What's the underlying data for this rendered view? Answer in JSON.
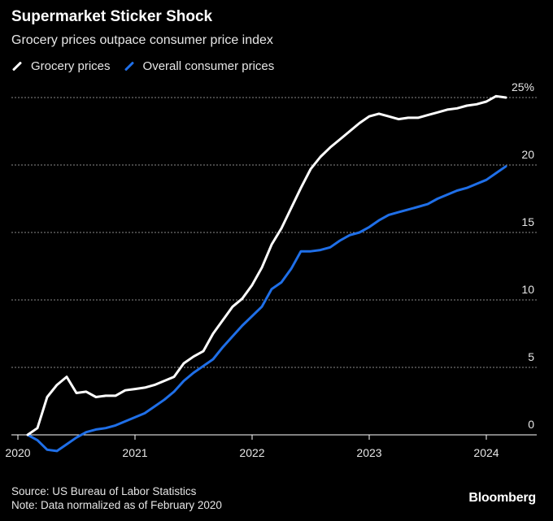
{
  "chart_data": {
    "type": "line",
    "title": "Supermarket Sticker Shock",
    "subtitle": "Grocery prices outpace consumer price index",
    "ylabel": "",
    "xlabel": "",
    "y_unit": "%",
    "ylim": [
      0,
      25
    ],
    "yticks": [
      0,
      5,
      10,
      15,
      20,
      25
    ],
    "ytick_labels": [
      "0",
      "5",
      "10",
      "15",
      "20",
      "25%"
    ],
    "xticks": [
      2020,
      2021,
      2022,
      2023,
      2024
    ],
    "grid": true,
    "legend_position": "top-left",
    "series": [
      {
        "name": "Grocery prices",
        "color": "#ffffff",
        "x": [
          "2020-02",
          "2020-03",
          "2020-04",
          "2020-05",
          "2020-06",
          "2020-07",
          "2020-08",
          "2020-09",
          "2020-10",
          "2020-11",
          "2020-12",
          "2021-01",
          "2021-02",
          "2021-03",
          "2021-04",
          "2021-05",
          "2021-06",
          "2021-07",
          "2021-08",
          "2021-09",
          "2021-10",
          "2021-11",
          "2021-12",
          "2022-01",
          "2022-02",
          "2022-03",
          "2022-04",
          "2022-05",
          "2022-06",
          "2022-07",
          "2022-08",
          "2022-09",
          "2022-10",
          "2022-11",
          "2022-12",
          "2023-01",
          "2023-02",
          "2023-03",
          "2023-04",
          "2023-05",
          "2023-06",
          "2023-07",
          "2023-08",
          "2023-09",
          "2023-10",
          "2023-11",
          "2023-12",
          "2024-01",
          "2024-02",
          "2024-03"
        ],
        "values": [
          0.0,
          0.5,
          2.8,
          3.7,
          4.3,
          3.1,
          3.2,
          2.8,
          2.9,
          2.9,
          3.3,
          3.4,
          3.5,
          3.7,
          4.0,
          4.3,
          5.3,
          5.8,
          6.2,
          7.5,
          8.5,
          9.5,
          10.1,
          11.1,
          12.4,
          14.1,
          15.3,
          16.8,
          18.3,
          19.7,
          20.6,
          21.3,
          21.9,
          22.5,
          23.1,
          23.6,
          23.8,
          23.6,
          23.4,
          23.5,
          23.5,
          23.7,
          23.9,
          24.1,
          24.2,
          24.4,
          24.5,
          24.7,
          25.1,
          25.0
        ]
      },
      {
        "name": "Overall consumer prices",
        "color": "#1f6fe8",
        "x": [
          "2020-02",
          "2020-03",
          "2020-04",
          "2020-05",
          "2020-06",
          "2020-07",
          "2020-08",
          "2020-09",
          "2020-10",
          "2020-11",
          "2020-12",
          "2021-01",
          "2021-02",
          "2021-03",
          "2021-04",
          "2021-05",
          "2021-06",
          "2021-07",
          "2021-08",
          "2021-09",
          "2021-10",
          "2021-11",
          "2021-12",
          "2022-01",
          "2022-02",
          "2022-03",
          "2022-04",
          "2022-05",
          "2022-06",
          "2022-07",
          "2022-08",
          "2022-09",
          "2022-10",
          "2022-11",
          "2022-12",
          "2023-01",
          "2023-02",
          "2023-03",
          "2023-04",
          "2023-05",
          "2023-06",
          "2023-07",
          "2023-08",
          "2023-09",
          "2023-10",
          "2023-11",
          "2023-12",
          "2024-01",
          "2024-02",
          "2024-03"
        ],
        "values": [
          0.0,
          -0.4,
          -1.1,
          -1.2,
          -0.7,
          -0.2,
          0.2,
          0.4,
          0.5,
          0.7,
          1.0,
          1.3,
          1.6,
          2.1,
          2.6,
          3.2,
          4.0,
          4.6,
          5.1,
          5.6,
          6.5,
          7.3,
          8.1,
          8.8,
          9.5,
          10.8,
          11.3,
          12.3,
          13.6,
          13.6,
          13.7,
          13.9,
          14.4,
          14.8,
          15.0,
          15.4,
          15.9,
          16.3,
          16.5,
          16.7,
          16.9,
          17.1,
          17.5,
          17.8,
          18.1,
          18.3,
          18.6,
          18.9,
          19.4,
          19.9
        ]
      }
    ]
  },
  "header": {
    "title": "Supermarket Sticker Shock",
    "subtitle": "Grocery prices outpace consumer price index"
  },
  "legend": {
    "items": [
      {
        "label": "Grocery prices",
        "color": "#ffffff"
      },
      {
        "label": "Overall consumer prices",
        "color": "#1f6fe8"
      }
    ]
  },
  "footer": {
    "source": "Source: US Bureau of Labor Statistics",
    "note": "Note: Data normalized as of February 2020",
    "brand": "Bloomberg"
  },
  "colors": {
    "background": "#000000",
    "grid": "#8a8a8a",
    "text": "#e6e6e6"
  }
}
